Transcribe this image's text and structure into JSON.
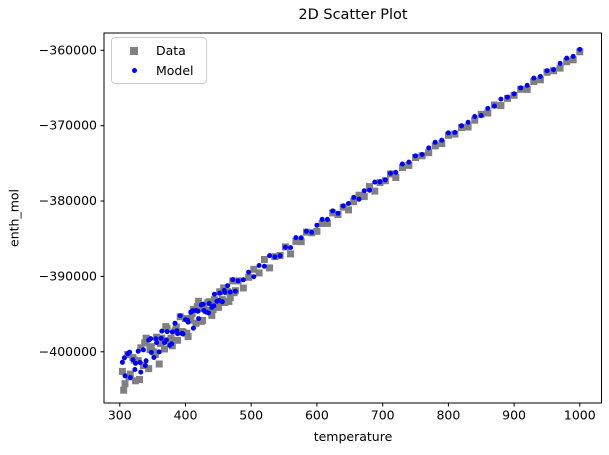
{
  "chart_data": {
    "type": "scatter",
    "title": "2D Scatter Plot",
    "xlabel": "temperature",
    "ylabel": "enth_mol",
    "xlim": [
      276,
      1033
    ],
    "ylim": [
      -406800,
      -357700
    ],
    "x_ticks": [
      300,
      400,
      500,
      600,
      700,
      800,
      900,
      1000
    ],
    "y_ticks": [
      -360000,
      -370000,
      -380000,
      -390000,
      -400000
    ],
    "grid": false,
    "legend_position": "upper left",
    "series": [
      {
        "name": "Data",
        "marker": "square",
        "color": "#808080",
        "marker_size": 7,
        "points": [
          [
            304,
            -402600
          ],
          [
            308,
            -404240
          ],
          [
            312,
            -400360
          ],
          [
            316,
            -402970
          ],
          [
            320,
            -400770
          ],
          [
            324,
            -403850
          ],
          [
            328,
            -401180
          ],
          [
            332,
            -399470
          ],
          [
            336,
            -401830
          ],
          [
            340,
            -398200
          ],
          [
            344,
            -402250
          ],
          [
            348,
            -399330
          ],
          [
            352,
            -400020
          ],
          [
            356,
            -398070
          ],
          [
            360,
            -401630
          ],
          [
            364,
            -398200
          ],
          [
            368,
            -399640
          ],
          [
            372,
            -396900
          ],
          [
            376,
            -398530
          ],
          [
            380,
            -399210
          ],
          [
            384,
            -397230
          ],
          [
            388,
            -398480
          ],
          [
            392,
            -395360
          ],
          [
            396,
            -397370
          ],
          [
            400,
            -395580
          ],
          [
            404,
            -397980
          ],
          [
            408,
            -395810
          ],
          [
            412,
            -394400
          ],
          [
            416,
            -396230
          ],
          [
            420,
            -393300
          ],
          [
            424,
            -395970
          ],
          [
            428,
            -394280
          ],
          [
            432,
            -394530
          ],
          [
            436,
            -393360
          ],
          [
            440,
            -395170
          ],
          [
            444,
            -393090
          ],
          [
            448,
            -393990
          ],
          [
            452,
            -392040
          ],
          [
            456,
            -393080
          ],
          [
            460,
            -393470
          ],
          [
            464,
            -392030
          ],
          [
            468,
            -392810
          ],
          [
            472,
            -390600
          ],
          [
            476,
            -391900
          ],
          [
            480,
            -390600
          ],
          [
            488,
            -391540
          ],
          [
            496,
            -390120
          ],
          [
            504,
            -389060
          ],
          [
            512,
            -389540
          ],
          [
            520,
            -387760
          ],
          [
            528,
            -388870
          ],
          [
            536,
            -387370
          ],
          [
            544,
            -387220
          ],
          [
            552,
            -386080
          ],
          [
            560,
            -387010
          ],
          [
            568,
            -385360
          ],
          [
            576,
            -385400
          ],
          [
            584,
            -384120
          ],
          [
            592,
            -384220
          ],
          [
            600,
            -384020
          ],
          [
            608,
            -382980
          ],
          [
            616,
            -382960
          ],
          [
            624,
            -381570
          ],
          [
            632,
            -381790
          ],
          [
            640,
            -380820
          ],
          [
            648,
            -381170
          ],
          [
            656,
            -380080
          ],
          [
            664,
            -379230
          ],
          [
            672,
            -379410
          ],
          [
            680,
            -378080
          ],
          [
            688,
            -378680
          ],
          [
            696,
            -377540
          ],
          [
            704,
            -377300
          ],
          [
            712,
            -376400
          ],
          [
            720,
            -376880
          ],
          [
            730,
            -375550
          ],
          [
            740,
            -375270
          ],
          [
            750,
            -374220
          ],
          [
            760,
            -373990
          ],
          [
            770,
            -373580
          ],
          [
            780,
            -372680
          ],
          [
            790,
            -372380
          ],
          [
            800,
            -371270
          ],
          [
            810,
            -371120
          ],
          [
            820,
            -370260
          ],
          [
            830,
            -370180
          ],
          [
            840,
            -369270
          ],
          [
            850,
            -368490
          ],
          [
            860,
            -368310
          ],
          [
            870,
            -367260
          ],
          [
            880,
            -367330
          ],
          [
            890,
            -366380
          ],
          [
            900,
            -365970
          ],
          [
            910,
            -365170
          ],
          [
            920,
            -365180
          ],
          [
            930,
            -364140
          ],
          [
            940,
            -363910
          ],
          [
            950,
            -362910
          ],
          [
            960,
            -362720
          ],
          [
            970,
            -362360
          ],
          [
            980,
            -361510
          ],
          [
            990,
            -361250
          ],
          [
            1000,
            -360200
          ],
          [
            306,
            -405100
          ],
          [
            314,
            -403340
          ],
          [
            322,
            -401110
          ],
          [
            330,
            -403680
          ],
          [
            338,
            -398820
          ],
          [
            346,
            -399710
          ],
          [
            354,
            -400360
          ],
          [
            362,
            -398910
          ],
          [
            370,
            -396660
          ],
          [
            378,
            -398200
          ],
          [
            386,
            -396720
          ],
          [
            394,
            -397320
          ],
          [
            402,
            -397540
          ],
          [
            410,
            -394920
          ],
          [
            418,
            -394000
          ],
          [
            426,
            -395840
          ],
          [
            434,
            -393490
          ],
          [
            442,
            -394390
          ],
          [
            450,
            -394120
          ],
          [
            458,
            -391520
          ],
          [
            466,
            -393330
          ],
          [
            474,
            -392160
          ]
        ]
      },
      {
        "name": "Model",
        "marker": "circle",
        "color": "#0000ff",
        "marker_size": 5,
        "points": [
          [
            304,
            -401400
          ],
          [
            308,
            -403210
          ],
          [
            312,
            -400270
          ],
          [
            316,
            -403420
          ],
          [
            320,
            -401050
          ],
          [
            324,
            -401530
          ],
          [
            328,
            -399930
          ],
          [
            332,
            -402700
          ],
          [
            336,
            -399760
          ],
          [
            340,
            -401200
          ],
          [
            344,
            -398460
          ],
          [
            348,
            -400080
          ],
          [
            352,
            -400760
          ],
          [
            356,
            -398780
          ],
          [
            360,
            -400020
          ],
          [
            364,
            -397260
          ],
          [
            368,
            -398790
          ],
          [
            372,
            -397320
          ],
          [
            376,
            -399150
          ],
          [
            380,
            -397380
          ],
          [
            384,
            -396210
          ],
          [
            388,
            -397590
          ],
          [
            392,
            -395220
          ],
          [
            396,
            -397650
          ],
          [
            400,
            -395730
          ],
          [
            404,
            -396070
          ],
          [
            408,
            -394750
          ],
          [
            412,
            -396880
          ],
          [
            416,
            -394520
          ],
          [
            420,
            -395600
          ],
          [
            424,
            -393780
          ],
          [
            428,
            -394520
          ],
          [
            432,
            -394750
          ],
          [
            436,
            -393590
          ],
          [
            440,
            -394120
          ],
          [
            444,
            -392360
          ],
          [
            448,
            -393290
          ],
          [
            452,
            -392230
          ],
          [
            456,
            -393370
          ],
          [
            460,
            -392110
          ],
          [
            464,
            -391240
          ],
          [
            468,
            -392080
          ],
          [
            472,
            -390420
          ],
          [
            476,
            -391960
          ],
          [
            480,
            -390600
          ],
          [
            488,
            -390450
          ],
          [
            496,
            -389440
          ],
          [
            504,
            -390040
          ],
          [
            512,
            -388550
          ],
          [
            520,
            -388660
          ],
          [
            528,
            -387240
          ],
          [
            536,
            -387430
          ],
          [
            544,
            -387270
          ],
          [
            552,
            -386130
          ],
          [
            560,
            -386180
          ],
          [
            568,
            -384850
          ],
          [
            576,
            -384880
          ],
          [
            584,
            -384020
          ],
          [
            592,
            -384150
          ],
          [
            600,
            -383200
          ],
          [
            608,
            -382430
          ],
          [
            616,
            -382430
          ],
          [
            624,
            -381310
          ],
          [
            632,
            -381620
          ],
          [
            640,
            -380640
          ],
          [
            648,
            -380320
          ],
          [
            656,
            -379520
          ],
          [
            664,
            -379750
          ],
          [
            672,
            -378640
          ],
          [
            680,
            -378560
          ],
          [
            688,
            -377490
          ],
          [
            696,
            -377460
          ],
          [
            704,
            -377200
          ],
          [
            712,
            -376320
          ],
          [
            720,
            -376200
          ],
          [
            730,
            -375080
          ],
          [
            740,
            -374830
          ],
          [
            750,
            -374010
          ],
          [
            760,
            -373820
          ],
          [
            770,
            -372950
          ],
          [
            780,
            -372200
          ],
          [
            790,
            -371930
          ],
          [
            800,
            -370960
          ],
          [
            810,
            -370890
          ],
          [
            820,
            -370010
          ],
          [
            830,
            -369550
          ],
          [
            840,
            -368780
          ],
          [
            850,
            -368660
          ],
          [
            860,
            -367710
          ],
          [
            870,
            -367400
          ],
          [
            880,
            -366470
          ],
          [
            890,
            -366200
          ],
          [
            900,
            -365780
          ],
          [
            910,
            -364980
          ],
          [
            920,
            -364650
          ],
          [
            930,
            -363680
          ],
          [
            940,
            -363470
          ],
          [
            950,
            -362700
          ],
          [
            960,
            -362560
          ],
          [
            970,
            -361740
          ],
          [
            980,
            -361030
          ],
          [
            990,
            -360810
          ],
          [
            1000,
            -359880
          ],
          [
            307,
            -400810
          ],
          [
            315,
            -400060
          ],
          [
            323,
            -402360
          ],
          [
            331,
            -401430
          ],
          [
            339,
            -401840
          ],
          [
            347,
            -398250
          ],
          [
            355,
            -398270
          ],
          [
            363,
            -398230
          ],
          [
            371,
            -398440
          ],
          [
            379,
            -398950
          ],
          [
            387,
            -397210
          ],
          [
            395,
            -397570
          ],
          [
            403,
            -395830
          ],
          [
            411,
            -394550
          ],
          [
            419,
            -394620
          ],
          [
            427,
            -393680
          ],
          [
            435,
            -394850
          ],
          [
            443,
            -393920
          ],
          [
            451,
            -393200
          ],
          [
            459,
            -391870
          ]
        ]
      }
    ]
  }
}
